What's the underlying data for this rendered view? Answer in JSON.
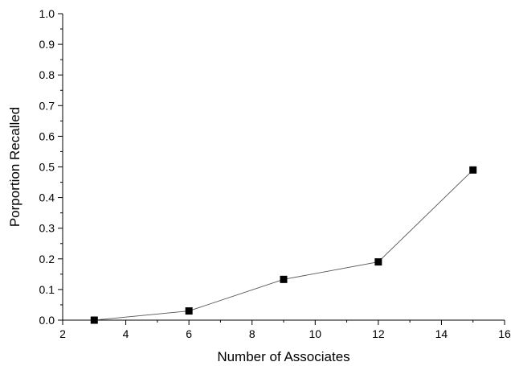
{
  "chart_data": {
    "type": "line",
    "title": "",
    "xlabel": "Number of Associates",
    "ylabel": "Porportion Recalled",
    "xlim": [
      2,
      16
    ],
    "ylim": [
      0.0,
      1.0
    ],
    "x_ticks": [
      2,
      4,
      6,
      8,
      10,
      12,
      14,
      16
    ],
    "y_ticks": [
      "0.0",
      "0.1",
      "0.2",
      "0.3",
      "0.4",
      "0.5",
      "0.6",
      "0.7",
      "0.8",
      "0.9",
      "1.0"
    ],
    "grid": false,
    "legend": "none",
    "marker": "square",
    "colors": {
      "line": "#555555",
      "marker": "#000000"
    },
    "series": [
      {
        "x": [
          3,
          6,
          9,
          12,
          15
        ],
        "y": [
          0.0,
          0.03,
          0.133,
          0.19,
          0.49
        ]
      }
    ]
  }
}
